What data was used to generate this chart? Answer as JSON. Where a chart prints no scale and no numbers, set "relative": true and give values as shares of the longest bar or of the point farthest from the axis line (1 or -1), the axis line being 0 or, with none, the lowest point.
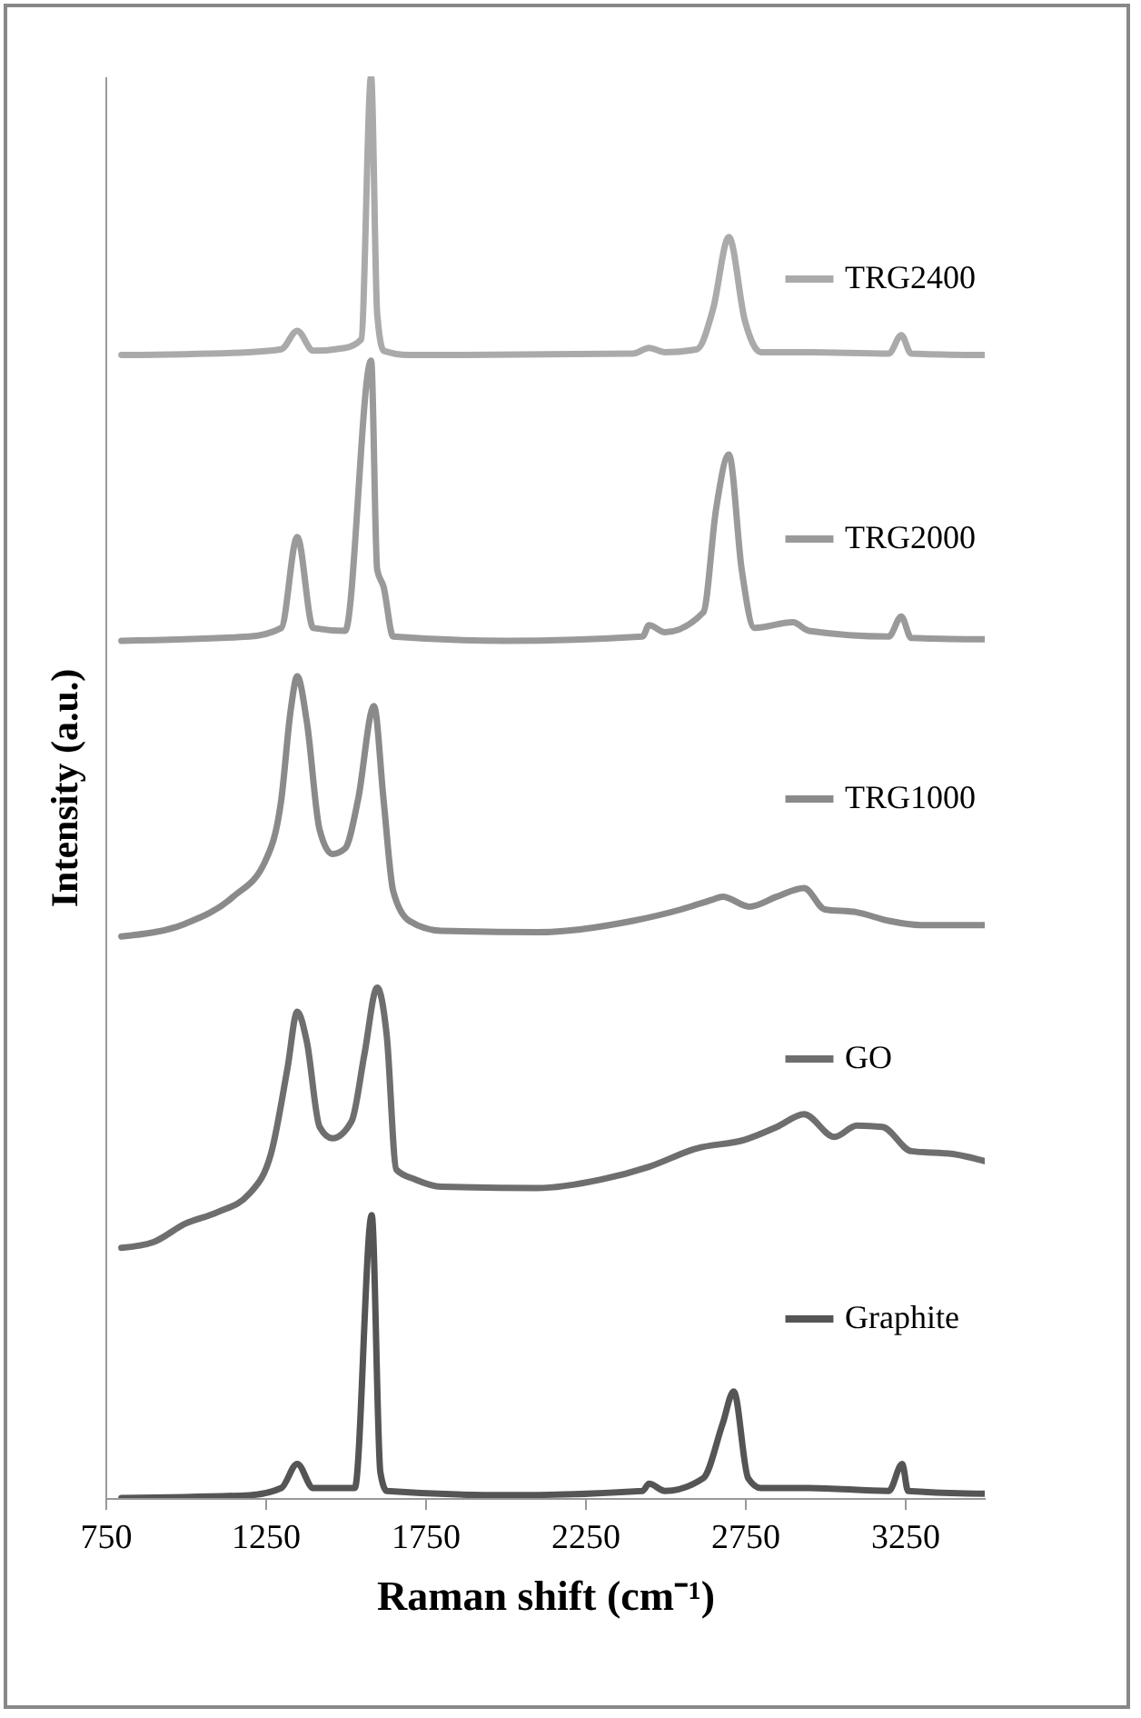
{
  "chart_data": {
    "type": "line",
    "xlabel": "Raman shift (cm⁻¹)",
    "ylabel": "Intensity (a.u.)",
    "relative": true,
    "xlim": [
      750,
      3500
    ],
    "xticks": [
      750,
      1250,
      1750,
      2250,
      2750,
      3250
    ],
    "legend": "right",
    "line_style": "solid",
    "series": [
      {
        "name": "TRG2400",
        "color": "#aaaaaa",
        "x": [
          800,
          1200,
          1300,
          1350,
          1400,
          1500,
          1550,
          1581,
          1600,
          1620,
          1700,
          2400,
          2450,
          2500,
          2600,
          2650,
          2700,
          2750,
          2800,
          2950,
          3200,
          3239,
          3270,
          3500
        ],
        "values": [
          0.804,
          0.806,
          0.808,
          0.821,
          0.807,
          0.809,
          0.815,
          1.0,
          0.833,
          0.807,
          0.804,
          0.805,
          0.809,
          0.806,
          0.808,
          0.836,
          0.887,
          0.828,
          0.806,
          0.806,
          0.805,
          0.818,
          0.805,
          0.804
        ]
      },
      {
        "name": "TRG2000",
        "color": "#9a9a9a",
        "x": [
          800,
          1200,
          1300,
          1350,
          1400,
          1500,
          1581,
          1600,
          1620,
          1650,
          2000,
          2430,
          2450,
          2500,
          2620,
          2660,
          2700,
          2740,
          2780,
          2900,
          2950,
          3200,
          3239,
          3270,
          3500
        ],
        "values": [
          0.603,
          0.606,
          0.612,
          0.676,
          0.612,
          0.61,
          0.8,
          0.653,
          0.641,
          0.606,
          0.603,
          0.606,
          0.614,
          0.609,
          0.623,
          0.696,
          0.734,
          0.653,
          0.612,
          0.616,
          0.61,
          0.606,
          0.62,
          0.605,
          0.604
        ]
      },
      {
        "name": "TRG1000",
        "color": "#8a8a8a",
        "x": [
          800,
          1000,
          1150,
          1250,
          1300,
          1330,
          1350,
          1380,
          1420,
          1460,
          1500,
          1540,
          1590,
          1620,
          1650,
          1700,
          1800,
          2100,
          2400,
          2550,
          2650,
          2680,
          2764,
          2850,
          2935,
          3000,
          3100,
          3200,
          3300,
          3500
        ],
        "values": [
          0.395,
          0.404,
          0.423,
          0.448,
          0.491,
          0.555,
          0.578,
          0.546,
          0.47,
          0.453,
          0.457,
          0.491,
          0.557,
          0.491,
          0.427,
          0.406,
          0.399,
          0.398,
          0.406,
          0.414,
          0.421,
          0.423,
          0.416,
          0.423,
          0.429,
          0.414,
          0.412,
          0.406,
          0.403,
          0.403
        ]
      },
      {
        "name": "GO",
        "color": "#6e6e6e",
        "x": [
          800,
          900,
          1000,
          1100,
          1200,
          1270,
          1320,
          1350,
          1380,
          1420,
          1460,
          1520,
          1560,
          1600,
          1630,
          1660,
          1720,
          1800,
          2100,
          2300,
          2450,
          2600,
          2750,
          2850,
          2935,
          3030,
          3100,
          3180,
          3270,
          3400,
          3500
        ],
        "values": [
          0.176,
          0.18,
          0.193,
          0.201,
          0.214,
          0.244,
          0.303,
          0.342,
          0.321,
          0.261,
          0.253,
          0.265,
          0.312,
          0.359,
          0.325,
          0.231,
          0.224,
          0.219,
          0.218,
          0.224,
          0.233,
          0.246,
          0.252,
          0.261,
          0.27,
          0.254,
          0.262,
          0.261,
          0.244,
          0.242,
          0.237
        ]
      },
      {
        "name": "Graphite",
        "color": "#555555",
        "x": [
          800,
          1200,
          1300,
          1350,
          1400,
          1530,
          1583,
          1610,
          1630,
          2000,
          2430,
          2450,
          2500,
          2620,
          2680,
          2715,
          2760,
          2800,
          2950,
          3200,
          3242,
          3260,
          3500
        ],
        "values": [
          0.0,
          0.002,
          0.007,
          0.024,
          0.007,
          0.007,
          0.199,
          0.018,
          0.005,
          0.002,
          0.005,
          0.01,
          0.005,
          0.014,
          0.052,
          0.075,
          0.014,
          0.007,
          0.007,
          0.005,
          0.024,
          0.005,
          0.003
        ]
      }
    ]
  }
}
